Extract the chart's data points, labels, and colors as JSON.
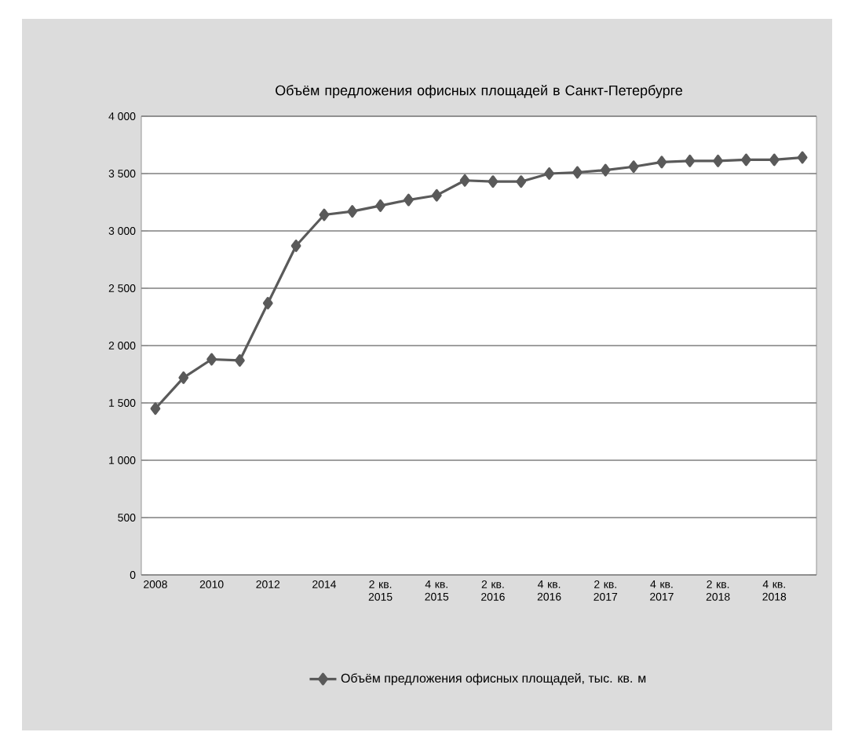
{
  "chart_data": {
    "type": "line",
    "title": "Объём предложения офисных площадей в Санкт-Петербурге",
    "categories": [
      "2008",
      null,
      "2010",
      null,
      "2012",
      null,
      "2014",
      null,
      "2 кв. 2015",
      null,
      "4 кв. 2015",
      null,
      "2 кв. 2016",
      null,
      "4 кв. 2016",
      null,
      "2 кв. 2017",
      null,
      "4 кв. 2017",
      null,
      "2 кв. 2018",
      null,
      "4 кв. 2018",
      null
    ],
    "series": [
      {
        "name": "Объём предложения офисных площадей, тыс. кв. м",
        "color": "#5a5a5a",
        "values": [
          1450,
          1720,
          1880,
          1870,
          2370,
          2870,
          3140,
          3170,
          3220,
          3270,
          3310,
          3440,
          3430,
          3430,
          3500,
          3510,
          3530,
          3560,
          3600,
          3610,
          3610,
          3620,
          3620,
          3640
        ]
      }
    ],
    "ylim": [
      0,
      4000
    ],
    "yticks": [
      {
        "value": 0,
        "label": "0"
      },
      {
        "value": 500,
        "label": "500"
      },
      {
        "value": 1000,
        "label": "1 000"
      },
      {
        "value": 1500,
        "label": "1 500"
      },
      {
        "value": 2000,
        "label": "2 000"
      },
      {
        "value": 2500,
        "label": "2 500"
      },
      {
        "value": 3000,
        "label": "3 000"
      },
      {
        "value": 3500,
        "label": "3 500"
      },
      {
        "value": 4000,
        "label": "4 000"
      }
    ],
    "grid": "y",
    "legend": "bottom",
    "marker": "diamond",
    "line_style": "solid"
  }
}
